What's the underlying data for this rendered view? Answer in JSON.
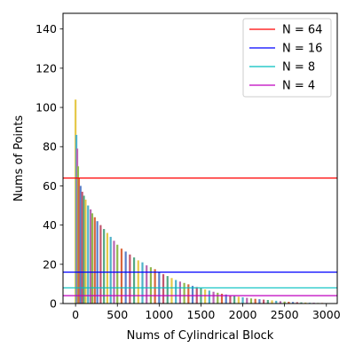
{
  "chart_data": {
    "type": "bar",
    "title": "",
    "xlabel": "Nums of Cylindrical Block",
    "ylabel": "Nums of Points",
    "xlim": [
      -150,
      3130
    ],
    "ylim": [
      0,
      148
    ],
    "xticks": [
      0,
      500,
      1000,
      1500,
      2000,
      2500,
      3000
    ],
    "yticks": [
      0,
      20,
      40,
      60,
      80,
      100,
      120,
      140
    ],
    "grid": false,
    "legend_position": "top-right",
    "bar_colors": [
      "#e6c84a",
      "#4fb1c9",
      "#b866b0",
      "#8fb84e",
      "#d9663d",
      "#5a7fc8",
      "#c2566e",
      "#54a884"
    ],
    "bars": {
      "x": [
        0,
        10,
        20,
        30,
        40,
        60,
        80,
        100,
        120,
        150,
        180,
        200,
        230,
        260,
        300,
        340,
        380,
        420,
        460,
        500,
        550,
        600,
        650,
        700,
        750,
        800,
        850,
        900,
        950,
        1000,
        1050,
        1100,
        1150,
        1200,
        1250,
        1300,
        1350,
        1400,
        1450,
        1500,
        1550,
        1600,
        1650,
        1700,
        1750,
        1800,
        1850,
        1900,
        1950,
        2000,
        2050,
        2100,
        2150,
        2200,
        2250,
        2300,
        2350,
        2400,
        2450,
        2500,
        2550,
        2600,
        2650,
        2700,
        2750,
        2800,
        2850,
        2900,
        2950,
        3000
      ],
      "values": [
        104,
        86,
        79,
        70,
        64,
        60,
        57,
        55,
        53,
        50,
        48,
        46,
        44,
        42,
        40,
        38,
        36,
        34,
        32,
        30,
        28,
        26.5,
        25,
        23.5,
        22,
        21,
        19.5,
        18.5,
        17.5,
        16,
        15,
        14,
        13,
        12,
        11.2,
        10.5,
        9.8,
        9,
        8.4,
        7.8,
        7.2,
        6.6,
        6,
        5.5,
        5,
        4.6,
        4.2,
        3.8,
        3.5,
        3.2,
        2.9,
        2.6,
        2.4,
        2.2,
        2,
        1.8,
        1.6,
        1.4,
        1.2,
        1,
        0.9,
        0.8,
        0.7,
        0.6,
        0.5,
        0.4,
        0.4,
        0.3,
        0.3,
        0.2
      ]
    },
    "hlines": [
      {
        "name": "N = 64",
        "y": 64,
        "color": "#ff0000"
      },
      {
        "name": "N = 16",
        "y": 16,
        "color": "#0000ff"
      },
      {
        "name": "N = 8",
        "y": 8,
        "color": "#00bfbf"
      },
      {
        "name": "N = 4",
        "y": 4,
        "color": "#bf00bf"
      }
    ]
  }
}
